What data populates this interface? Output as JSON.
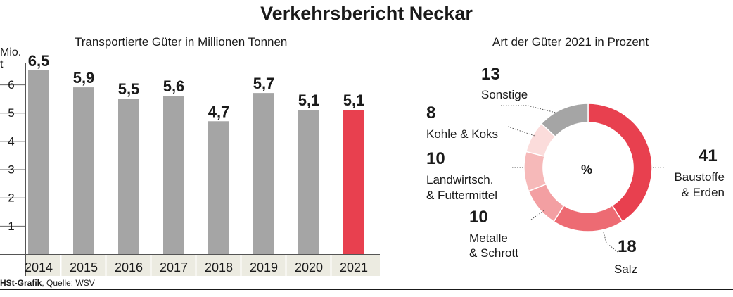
{
  "title": "Verkehrsbericht Neckar",
  "footer": {
    "credit": "HSt-Grafik",
    "source": ", Quelle: WSV"
  },
  "chart_data": [
    {
      "type": "bar",
      "subtitle": "Transportierte Güter in Millionen Tonnen",
      "ylabel_line1": "Mio.",
      "ylabel_line2": "t",
      "yticks": [
        "1",
        "2",
        "3",
        "4",
        "5",
        "6"
      ],
      "ylim": [
        0,
        6.5
      ],
      "categories": [
        "2014",
        "2015",
        "2016",
        "2017",
        "2018",
        "2019",
        "2020",
        "2021"
      ],
      "values": [
        6.5,
        5.9,
        5.5,
        5.6,
        4.7,
        5.7,
        5.1,
        5.1
      ],
      "value_labels": [
        "6,5",
        "5,9",
        "5,5",
        "5,6",
        "4,7",
        "5,7",
        "5,1",
        "5,1"
      ],
      "colors": [
        "#a5a5a5",
        "#a5a5a5",
        "#a5a5a5",
        "#a5a5a5",
        "#a5a5a5",
        "#a5a5a5",
        "#a5a5a5",
        "#e8404f"
      ],
      "axis_band_color": "#ecebe1"
    },
    {
      "type": "pie",
      "subtitle": "Art der Güter 2021 in Prozent",
      "center_label": "%",
      "slices": [
        {
          "label_line1": "Baustoffe",
          "label_line2": "& Erden",
          "value": 41,
          "color": "#e8404f"
        },
        {
          "label_line1": "Salz",
          "label_line2": "",
          "value": 18,
          "color": "#ed6b73"
        },
        {
          "label_line1": "Metalle",
          "label_line2": "& Schrott",
          "value": 10,
          "color": "#f39fa2"
        },
        {
          "label_line1": "Landwirtsch.",
          "label_line2": "& Futtermittel",
          "value": 10,
          "color": "#f6b9b9"
        },
        {
          "label_line1": "Kohle & Koks",
          "label_line2": "",
          "value": 8,
          "color": "#fbdcdb"
        },
        {
          "label_line1": "Sonstige",
          "label_line2": "",
          "value": 13,
          "color": "#a5a5a5"
        }
      ]
    }
  ]
}
